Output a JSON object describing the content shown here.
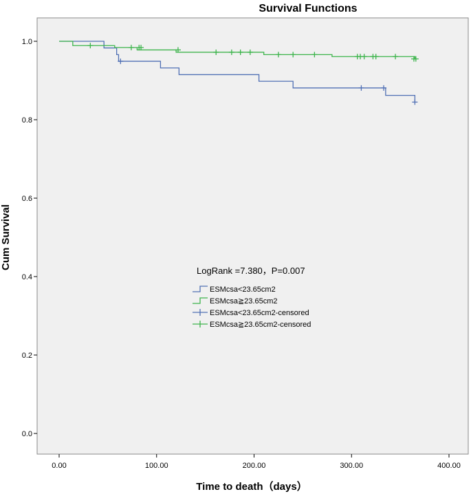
{
  "chart_data": {
    "type": "line",
    "subtype": "kaplan-meier-step",
    "title": "Survival Functions",
    "xlabel": "Time to death（days）",
    "ylabel": "Cum Survival",
    "xlim": [
      -10,
      400
    ],
    "ylim": [
      -0.05,
      1.05
    ],
    "x_ticks": [
      0,
      100,
      200,
      300,
      400
    ],
    "x_tick_labels": [
      "0.00",
      "100.00",
      "200.00",
      "300.00",
      "400.00"
    ],
    "y_ticks": [
      0.0,
      0.2,
      0.4,
      0.6,
      0.8,
      1.0
    ],
    "y_tick_labels": [
      "0.0",
      "0.2",
      "0.4",
      "0.6",
      "0.8",
      "1.0"
    ],
    "grid": false,
    "plot_background": "#f0f0f0",
    "annotation": "LogRank =7.380，P=0.007",
    "legend_placement": "center-left",
    "series": [
      {
        "name": "ESMcsa<23.65cm2",
        "censored_label": "ESMcsa<23.65cm2-censored",
        "color": "#4f6fb4",
        "steps": [
          [
            0,
            1.0
          ],
          [
            46,
            0.983
          ],
          [
            59,
            0.966
          ],
          [
            61,
            0.949
          ],
          [
            104,
            0.932
          ],
          [
            123,
            0.915
          ],
          [
            205,
            0.898
          ],
          [
            240,
            0.881
          ],
          [
            335,
            0.862
          ],
          [
            365,
            0.845
          ]
        ],
        "censored": [
          [
            63,
            0.949
          ],
          [
            310,
            0.881
          ],
          [
            333,
            0.881
          ],
          [
            365,
            0.845
          ]
        ]
      },
      {
        "name": "ESMcsa≧23.65cm2",
        "censored_label": "ESMcsa≧23.65cm2-censored",
        "color": "#3cb44b",
        "steps": [
          [
            0,
            1.0
          ],
          [
            14,
            0.989
          ],
          [
            45,
            0.989
          ],
          [
            57,
            0.984
          ],
          [
            80,
            0.978
          ],
          [
            120,
            0.972
          ],
          [
            210,
            0.966
          ],
          [
            280,
            0.961
          ],
          [
            365,
            0.955
          ]
        ],
        "censored": [
          [
            32,
            0.989
          ],
          [
            74,
            0.984
          ],
          [
            82,
            0.984
          ],
          [
            84,
            0.984
          ],
          [
            122,
            0.978
          ],
          [
            161,
            0.972
          ],
          [
            177,
            0.972
          ],
          [
            186,
            0.972
          ],
          [
            196,
            0.972
          ],
          [
            225,
            0.966
          ],
          [
            240,
            0.966
          ],
          [
            262,
            0.966
          ],
          [
            306,
            0.961
          ],
          [
            309,
            0.961
          ],
          [
            313,
            0.961
          ],
          [
            322,
            0.961
          ],
          [
            325,
            0.961
          ],
          [
            345,
            0.961
          ],
          [
            364,
            0.955
          ],
          [
            366,
            0.955
          ]
        ]
      }
    ]
  }
}
